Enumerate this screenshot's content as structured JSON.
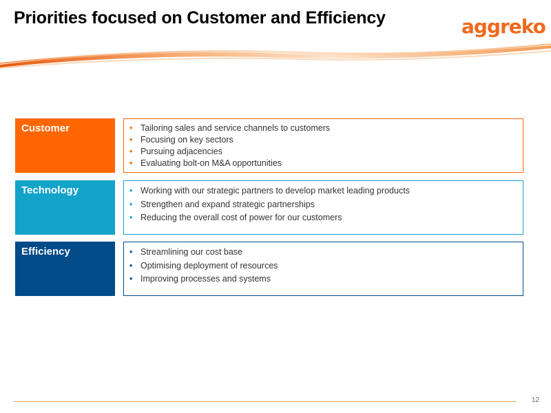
{
  "slide": {
    "title": "Priorities focused on Customer and Efficiency",
    "logo_text": "aggreko",
    "page_number": "12",
    "colors": {
      "customer": "#ff6600",
      "technology": "#12a3c9",
      "efficiency": "#014b88",
      "logo": "#ee6a1e"
    },
    "rows": [
      {
        "label": "Customer",
        "bullets": [
          "Tailoring sales and service channels to customers",
          "Focusing on key sectors",
          "Pursuing adjacencies",
          "Evaluating bolt-on M&A opportunities"
        ]
      },
      {
        "label": "Technology",
        "bullets": [
          "Working with our strategic partners to develop market leading products",
          "Strengthen and expand strategic partnerships",
          "Reducing the overall cost of power for our customers"
        ]
      },
      {
        "label": "Efficiency",
        "bullets": [
          "Streamlining our cost base",
          "Optimising deployment of resources",
          "Improving processes and systems"
        ]
      }
    ]
  }
}
